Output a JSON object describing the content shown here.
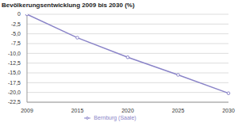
{
  "chart_data": {
    "type": "line",
    "title": "Bevölkerungsentwicklung 2009 bis 2030 (%)",
    "categories": [
      "2009",
      "2015",
      "2020",
      "2025",
      "2030"
    ],
    "series": [
      {
        "name": "Bernburg (Saale)",
        "color": "#8a84c8",
        "values": [
          0,
          -6.0,
          -11.0,
          -15.5,
          -20.2
        ],
        "marker": "circle"
      }
    ],
    "ylim": [
      -22.5,
      0
    ],
    "yticks": [
      0,
      {
        "value": -2.5,
        "label": "-2,5"
      },
      {
        "value": -5,
        "label": "-5,0"
      },
      {
        "value": -7.5,
        "label": "-7,5"
      },
      {
        "value": -10,
        "label": "-10,0"
      },
      {
        "value": -12.5,
        "label": "-12,5"
      },
      {
        "value": -15,
        "label": "-15,0"
      },
      {
        "value": -17.5,
        "label": "-17,5"
      },
      {
        "value": -20,
        "label": "-20,0"
      },
      {
        "value": -22.5,
        "label": "-22,5"
      }
    ],
    "grid": true,
    "legend": "bottom"
  }
}
